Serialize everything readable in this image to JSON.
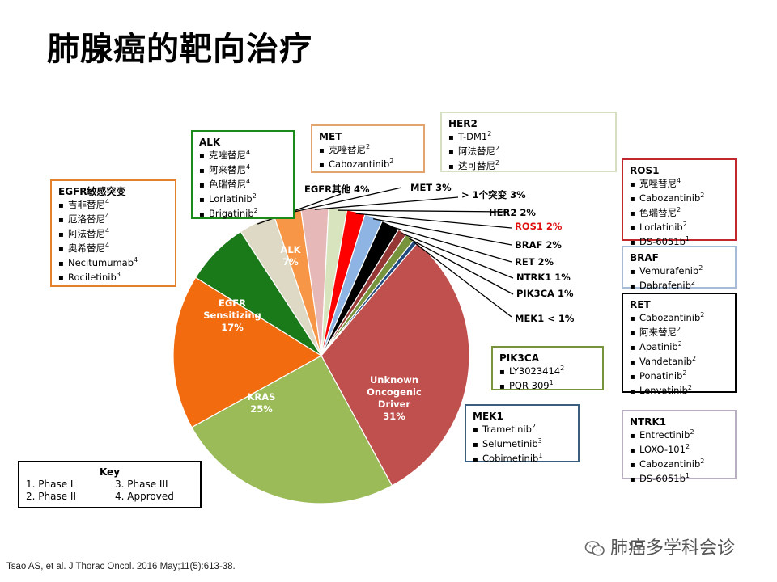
{
  "title": "肺腺癌的靶向治疗",
  "colors": {
    "egfr_sensitizing": "#f26b0f",
    "alk": "#1a7a1a",
    "kras": "#9bbb59",
    "unknown": "#c0504d",
    "egfr_other": "#ddd9c4",
    "met": "#f79646",
    "multi": "#e6b9b8",
    "her2": "#d7e4bd",
    "ros1": "#ff0000",
    "braf": "#8eb4e3",
    "ret": "#000000",
    "ntrk1": "#953735",
    "pik3ca": "#77933c",
    "mek1": "#1f497d"
  },
  "chart_data": {
    "type": "pie",
    "title": "",
    "slices": [
      {
        "label": "EGFR其他",
        "value": 4,
        "pct_text": "4%"
      },
      {
        "label": "MET",
        "value": 3,
        "pct_text": "3%"
      },
      {
        "label": "> 1个突变",
        "value": 3,
        "pct_text": "3%"
      },
      {
        "label": "HER2",
        "value": 2,
        "pct_text": "2%"
      },
      {
        "label": "ROS1",
        "value": 2,
        "pct_text": "2%"
      },
      {
        "label": "BRAF",
        "value": 2,
        "pct_text": "2%"
      },
      {
        "label": "RET",
        "value": 2,
        "pct_text": "2%"
      },
      {
        "label": "NTRK1",
        "value": 1,
        "pct_text": "1%"
      },
      {
        "label": "PIK3CA",
        "value": 1,
        "pct_text": "1%"
      },
      {
        "label": "MEK1",
        "value": 0.5,
        "pct_text": "< 1%"
      },
      {
        "label": "Unknown Oncogenic Driver",
        "value": 31,
        "pct_text": "31%"
      },
      {
        "label": "KRAS",
        "value": 25,
        "pct_text": "25%"
      },
      {
        "label": "EGFR Sensitizing",
        "value": 17,
        "pct_text": "17%"
      },
      {
        "label": "ALK",
        "value": 7,
        "pct_text": "7%"
      }
    ],
    "inside_labels": {
      "unknown": [
        "Unknown",
        "Oncogenic",
        "Driver",
        "31%"
      ],
      "kras": [
        "KRAS",
        "25%"
      ],
      "egfr": [
        "EGFR",
        "Sensitizing",
        "17%"
      ],
      "alk": [
        "ALK",
        "7%"
      ]
    },
    "outside_labels": {
      "egfr_other": "EGFR其他  4%",
      "met": "MET 3%",
      "multi": "> 1个突变  3%",
      "her2": "HER2  2%",
      "ros1": "ROS1  2%",
      "braf": "BRAF  2%",
      "ret": "RET  2%",
      "ntrk1": "NTRK1  1%",
      "pik3ca": "PIK3CA  1%",
      "mek1": "MEK1  < 1%"
    }
  },
  "boxes": {
    "egfr": {
      "title": "EGFR敏感突变",
      "items": [
        {
          "name": "吉非替尼",
          "sup": "4"
        },
        {
          "name": "厄洛替尼",
          "sup": "4"
        },
        {
          "name": "阿法替尼",
          "sup": "4"
        },
        {
          "name": "奥希替尼",
          "sup": "4"
        },
        {
          "name": "Necitumumab",
          "sup": "4"
        },
        {
          "name": "Rociletinib",
          "sup": "3"
        }
      ]
    },
    "alk": {
      "title": "ALK",
      "items": [
        {
          "name": "克唑替尼",
          "sup": "4"
        },
        {
          "name": "阿来替尼",
          "sup": "4"
        },
        {
          "name": "色瑞替尼",
          "sup": "4"
        },
        {
          "name": "Lorlatinib",
          "sup": "2"
        },
        {
          "name": "Brigatinib",
          "sup": "2"
        }
      ]
    },
    "met": {
      "title": "MET",
      "items": [
        {
          "name": "克唑替尼",
          "sup": "2"
        },
        {
          "name": "Cabozantinib",
          "sup": "2"
        }
      ]
    },
    "her2": {
      "title": "HER2",
      "items": [
        {
          "name": "T-DM1",
          "sup": "2"
        },
        {
          "name": "阿法替尼",
          "sup": "2"
        },
        {
          "name": "达可替尼",
          "sup": "2"
        }
      ]
    },
    "ros1": {
      "title": "ROS1",
      "items": [
        {
          "name": "克唑替尼",
          "sup": "4"
        },
        {
          "name": "Cabozantinib",
          "sup": "2"
        },
        {
          "name": "色瑞替尼",
          "sup": "2"
        },
        {
          "name": "Lorlatinib",
          "sup": "2"
        },
        {
          "name": "DS-6051b",
          "sup": "1"
        }
      ]
    },
    "braf": {
      "title": "BRAF",
      "items": [
        {
          "name": "Vemurafenib",
          "sup": "2"
        },
        {
          "name": "Dabrafenib",
          "sup": "2"
        }
      ]
    },
    "ret": {
      "title": "RET",
      "items": [
        {
          "name": "Cabozantinib",
          "sup": "2"
        },
        {
          "name": "阿来替尼",
          "sup": "2"
        },
        {
          "name": "Apatinib",
          "sup": "2"
        },
        {
          "name": "Vandetanib",
          "sup": "2"
        },
        {
          "name": "Ponatinib",
          "sup": "2"
        },
        {
          "name": "Lenvatinib",
          "sup": "2"
        }
      ]
    },
    "pik3ca": {
      "title": "PIK3CA",
      "items": [
        {
          "name": "LY3023414",
          "sup": "2"
        },
        {
          "name": "PQR 309",
          "sup": "1"
        }
      ]
    },
    "mek1": {
      "title": "MEK1",
      "items": [
        {
          "name": "Trametinib",
          "sup": "2"
        },
        {
          "name": "Selumetinib",
          "sup": "3"
        },
        {
          "name": "Cobimetinib",
          "sup": "1"
        }
      ]
    },
    "ntrk1": {
      "title": "NTRK1",
      "items": [
        {
          "name": "Entrectinib",
          "sup": "2"
        },
        {
          "name": "LOXO-101",
          "sup": "2"
        },
        {
          "name": "Cabozantinib",
          "sup": "2"
        },
        {
          "name": "DS-6051b",
          "sup": "1"
        }
      ]
    }
  },
  "key": {
    "title": "Key",
    "items": [
      "1. Phase I",
      "3. Phase III",
      "2. Phase II",
      "4. Approved"
    ]
  },
  "citation": "Tsao AS, et al. J Thorac Oncol. 2016 May;11(5):613-38.",
  "watermark": "肺癌多学科会诊"
}
